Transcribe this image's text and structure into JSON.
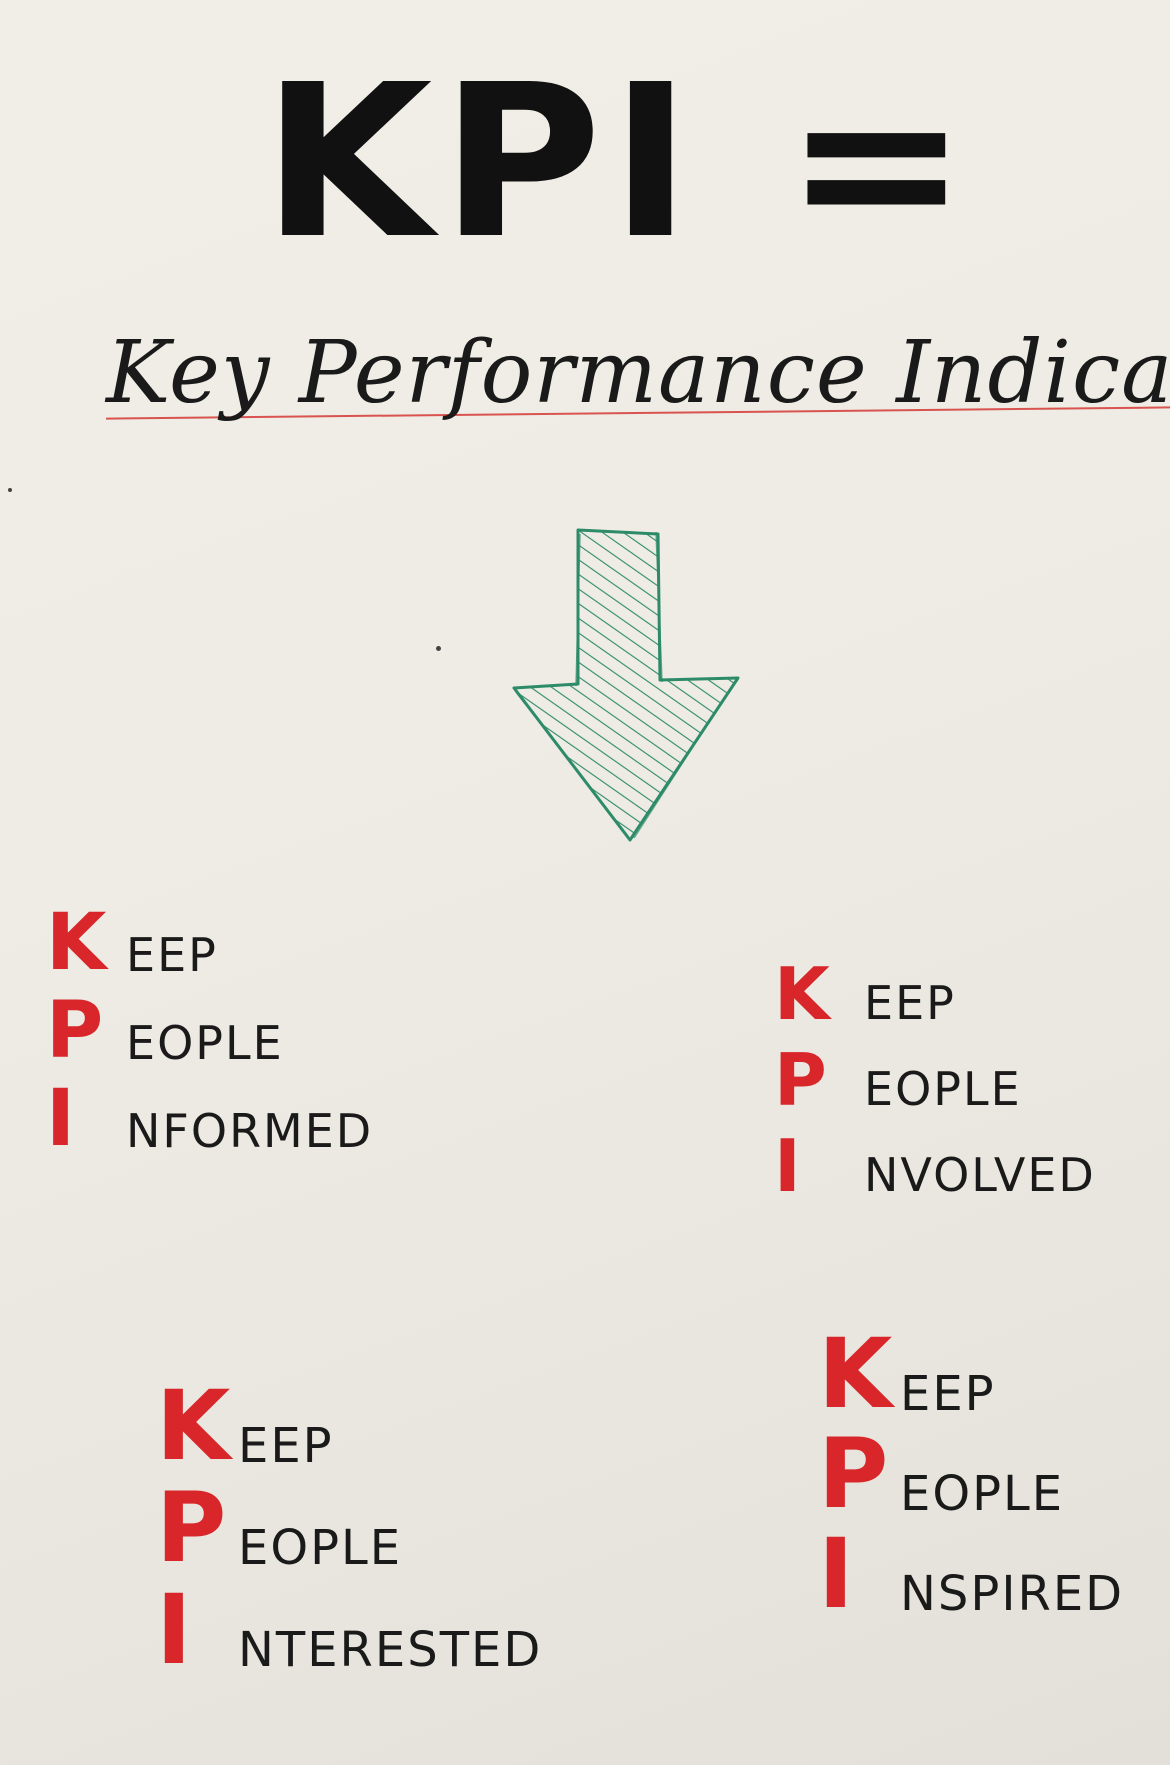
{
  "headline": "KPI =",
  "subtitle": "Key Performance Indicators",
  "colors": {
    "headline": "#111111",
    "acronym_letters": "#d8262a",
    "arrow": "#2e8b6a",
    "strike_line": "#d9534f",
    "paper": "#eeece4"
  },
  "arrow_icon": "down-arrow-icon",
  "acronyms": [
    {
      "rows": [
        {
          "letter": "K",
          "rest": "EEP"
        },
        {
          "letter": "P",
          "rest": "EOPLE"
        },
        {
          "letter": "I",
          "rest": "NFORMED"
        }
      ]
    },
    {
      "rows": [
        {
          "letter": "K",
          "rest": "EEP"
        },
        {
          "letter": "P",
          "rest": "EOPLE"
        },
        {
          "letter": "I",
          "rest": "NVOLVED"
        }
      ]
    },
    {
      "rows": [
        {
          "letter": "K",
          "rest": "EEP"
        },
        {
          "letter": "P",
          "rest": "EOPLE"
        },
        {
          "letter": "I",
          "rest": "NTERESTED"
        }
      ]
    },
    {
      "rows": [
        {
          "letter": "K",
          "rest": "EEP"
        },
        {
          "letter": "P",
          "rest": "EOPLE"
        },
        {
          "letter": "I",
          "rest": "NSPIRED"
        }
      ]
    }
  ]
}
